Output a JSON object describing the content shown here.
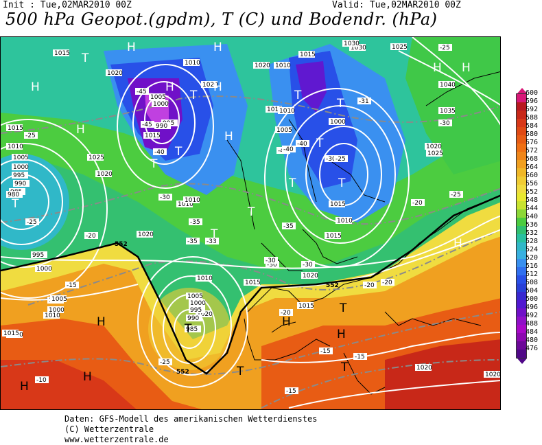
{
  "header": {
    "init": "Init : Tue,02MAR2010 00Z",
    "valid": "Valid: Tue,02MAR2010 00Z",
    "title": "500 hPa Geopot.(gpdm), T (C) und Bodendr. (hPa)"
  },
  "legend": {
    "levels": [
      "600",
      "596",
      "592",
      "588",
      "584",
      "580",
      "576",
      "572",
      "568",
      "564",
      "560",
      "556",
      "552",
      "548",
      "544",
      "540",
      "536",
      "532",
      "528",
      "524",
      "520",
      "516",
      "512",
      "508",
      "504",
      "500",
      "496",
      "492",
      "488",
      "484",
      "480",
      "476"
    ],
    "colors": [
      "#d81878",
      "#b81820",
      "#c82818",
      "#d83818",
      "#e04a14",
      "#e85c14",
      "#f07014",
      "#f0861a",
      "#f0a020",
      "#f0b828",
      "#f0cc34",
      "#f0dc40",
      "#e8e830",
      "#c8e430",
      "#8cd838",
      "#4ccc40",
      "#30c070",
      "#28c0a0",
      "#30b8c8",
      "#38b0e0",
      "#3890f0",
      "#3070f0",
      "#2850e8",
      "#2840d8",
      "#3828d0",
      "#5018d0",
      "#7010c8",
      "#9010c8",
      "#a808c8",
      "#8c08b0",
      "#6c0898",
      "#500888"
    ]
  },
  "map": {
    "pressure_labels": [
      "1015",
      "1020",
      "1015",
      "1010",
      "1005",
      "1000",
      "995",
      "990",
      "985",
      "980",
      "1025",
      "1030",
      "1035",
      "1040",
      "1020",
      "1010",
      "1005",
      "1000",
      "995",
      "990",
      "1015",
      "1010",
      "1005",
      "1000",
      "1020",
      "1025",
      "1020",
      "1015",
      "995",
      "1000",
      "1005",
      "1010",
      "1015",
      "1020",
      "1010",
      "1015",
      "1020",
      "1015",
      "1020",
      "1010",
      "1010",
      "1005",
      "1000",
      "995",
      "990",
      "985",
      "1015",
      "1010",
      "1020",
      "1020",
      "1015",
      "1010",
      "1030",
      "1025",
      "1020",
      "1005",
      "1000",
      "1010",
      "1015"
    ],
    "temp_labels": [
      "-45",
      "-45",
      "-40",
      "-40",
      "-40",
      "-35",
      "-35",
      "-35",
      "-33",
      "-30",
      "-30",
      "-30",
      "-30",
      "-25",
      "-25",
      "-25",
      "-25",
      "-25",
      "-25",
      "-20",
      "-20",
      "-20",
      "-20",
      "-15",
      "-15",
      "-15",
      "-15",
      "-10",
      "-30",
      "-31",
      "-40",
      "-30",
      "-20"
    ],
    "geopot_labels": [
      "552",
      "552",
      "552"
    ],
    "high_symbol": "H",
    "low_symbol": "T"
  },
  "footer": {
    "line1": "Daten: GFS-Modell des amerikanischen Wetterdienstes",
    "line2": "(C) Wetterzentrale",
    "line3": "www.wetterzentrale.de"
  }
}
